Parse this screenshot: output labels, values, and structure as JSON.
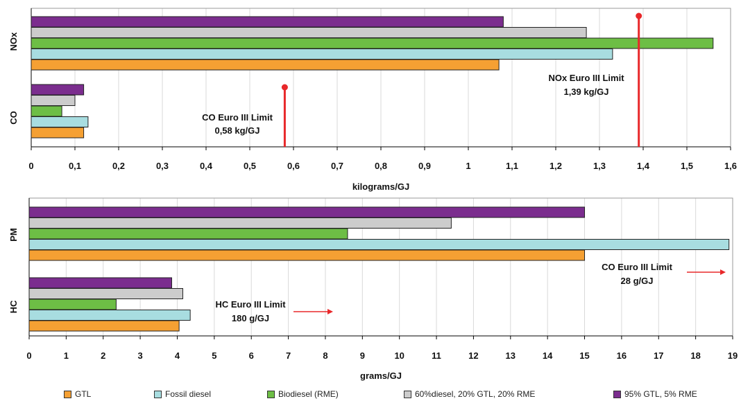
{
  "colors": {
    "gtl": "#F5A033",
    "fossil": "#A8DDE0",
    "biodiesel": "#6DBE45",
    "mix60": "#CCCCCC",
    "mix95": "#7B2D8E",
    "limit": "#E8282A",
    "grid": "#D9D9D9"
  },
  "legend": {
    "items": [
      {
        "label": "GTL",
        "color": "#F5A033"
      },
      {
        "label": "Fossil diesel",
        "color": "#A8DDE0"
      },
      {
        "label": "Biodiesel (RME)",
        "color": "#6DBE45"
      },
      {
        "label": "60%diesel, 20% GTL, 20% RME",
        "color": "#CCCCCC"
      },
      {
        "label": "95% GTL, 5% RME",
        "color": "#7B2D8E"
      }
    ]
  },
  "chart_data": [
    {
      "type": "bar",
      "orientation": "horizontal",
      "xlabel": "kilograms/GJ",
      "xlim": [
        0,
        1.6
      ],
      "xticks": [
        "0",
        "0,1",
        "0,2",
        "0,3",
        "0,4",
        "0,5",
        "0,6",
        "0,7",
        "0,8",
        "0,9",
        "1",
        "1,1",
        "1,2",
        "1,3",
        "1,4",
        "1,5",
        "1,6"
      ],
      "categories": [
        "NOx",
        "CO"
      ],
      "series": [
        {
          "name": "GTL",
          "values": [
            1.07,
            0.12
          ]
        },
        {
          "name": "Fossil diesel",
          "values": [
            1.33,
            0.13
          ]
        },
        {
          "name": "Biodiesel (RME)",
          "values": [
            1.56,
            0.07
          ]
        },
        {
          "name": "60%diesel, 20% GTL, 20% RME",
          "values": [
            1.27,
            0.1
          ]
        },
        {
          "name": "95% GTL, 5% RME",
          "values": [
            1.08,
            0.12
          ]
        }
      ],
      "annotations": [
        {
          "line1": "NOx Euro III Limit",
          "line2": "1,39 kg/GJ",
          "value": 1.39
        },
        {
          "line1": "CO Euro III Limit",
          "line2": "0,58 kg/GJ",
          "value": 0.58
        }
      ],
      "grid": true
    },
    {
      "type": "bar",
      "orientation": "horizontal",
      "xlabel": "grams/GJ",
      "xlim": [
        0,
        19
      ],
      "xticks": [
        "0",
        "1",
        "2",
        "3",
        "4",
        "5",
        "6",
        "7",
        "8",
        "9",
        "10",
        "11",
        "12",
        "13",
        "14",
        "15",
        "16",
        "17",
        "18",
        "19"
      ],
      "categories": [
        "PM",
        "HC"
      ],
      "series": [
        {
          "name": "GTL",
          "values": [
            15.0,
            4.05
          ]
        },
        {
          "name": "Fossil diesel",
          "values": [
            18.9,
            4.35
          ]
        },
        {
          "name": "Biodiesel (RME)",
          "values": [
            8.6,
            2.35
          ]
        },
        {
          "name": "60%diesel, 20% GTL, 20% RME",
          "values": [
            11.4,
            4.15
          ]
        },
        {
          "name": "95% GTL, 5% RME",
          "values": [
            15.0,
            3.85
          ]
        }
      ],
      "annotations": [
        {
          "line1": "CO Euro III Limit",
          "line2": "28 g/GJ",
          "arrow": "right"
        },
        {
          "line1": "HC Euro III Limit",
          "line2": "180 g/GJ",
          "arrow": "right"
        }
      ],
      "grid": true
    }
  ]
}
